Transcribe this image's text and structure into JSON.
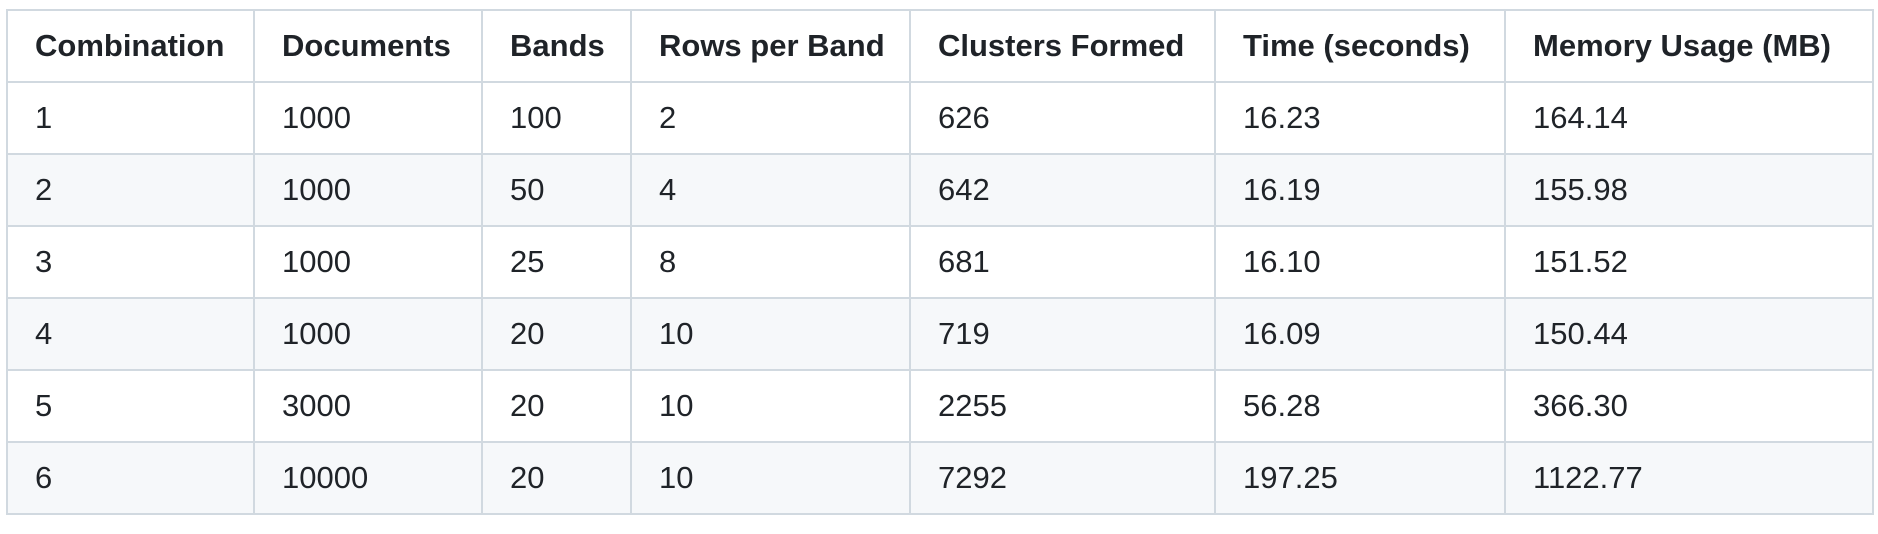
{
  "table": {
    "headers": [
      "Combination",
      "Documents",
      "Bands",
      "Rows per Band",
      "Clusters Formed",
      "Time (seconds)",
      "Memory Usage (MB)"
    ],
    "rows": [
      [
        "1",
        "1000",
        "100",
        "2",
        "626",
        "16.23",
        "164.14"
      ],
      [
        "2",
        "1000",
        "50",
        "4",
        "642",
        "16.19",
        "155.98"
      ],
      [
        "3",
        "1000",
        "25",
        "8",
        "681",
        "16.10",
        "151.52"
      ],
      [
        "4",
        "1000",
        "20",
        "10",
        "719",
        "16.09",
        "150.44"
      ],
      [
        "5",
        "3000",
        "20",
        "10",
        "2255",
        "56.28",
        "366.30"
      ],
      [
        "6",
        "10000",
        "20",
        "10",
        "7292",
        "197.25",
        "1122.77"
      ]
    ]
  },
  "colors": {
    "border": "#d1d9e0",
    "stripe": "#f6f8fa",
    "text": "#1f2328"
  }
}
